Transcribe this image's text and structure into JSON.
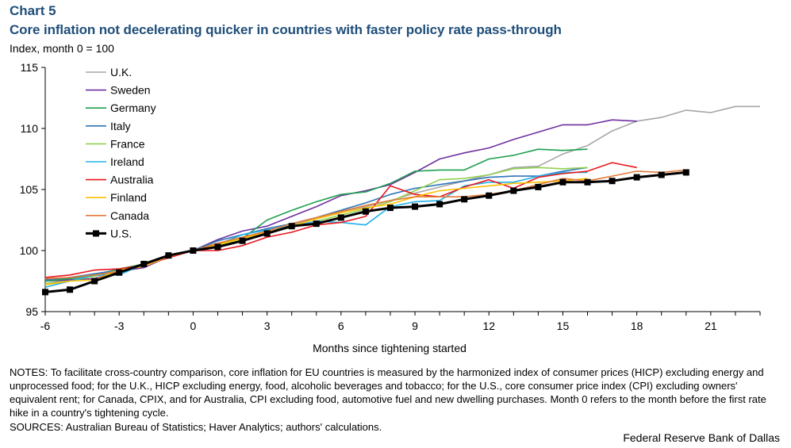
{
  "header": {
    "chart_number": "Chart 5",
    "title": "Core inflation not decelerating quicker in countries with faster policy rate pass-through",
    "unit_label": "Index,  month 0 = 100"
  },
  "footer": {
    "notes": "NOTES: To facilitate cross-country comparison, core inflation for EU countries is measured by the harmonized index of consumer prices (HICP) excluding energy and unprocessed food; for the U.K., HICP excluding energy, food, alcoholic beverages and tobacco; for the  U.S., core consumer price index (CPI) excluding owners' equivalent rent; for Canada, CPIX, and for Australia, CPI excluding food, automotive fuel and new dwelling purchases. Month  0 refers to the month before the first rate hike in a country's tightening cycle.",
    "sources": "SOURCES: Australian Bureau of Statistics; Haver Analytics;  authors' calculations.",
    "credit": "Federal Reserve Bank of Dallas"
  },
  "chart_data": {
    "type": "line",
    "xlabel": "Months since tightening started",
    "ylabel": "",
    "xlim": [
      -6,
      23
    ],
    "ylim": [
      95,
      115
    ],
    "xticks": [
      -6,
      -3,
      0,
      3,
      6,
      9,
      12,
      15,
      18,
      21
    ],
    "yticks": [
      95,
      100,
      105,
      110,
      115
    ],
    "grid": false,
    "legend_position": "top-left",
    "series": [
      {
        "name": "U.K.",
        "color": "#a6a6a6",
        "x0": -6,
        "values": [
          97.3,
          97.6,
          97.9,
          98.3,
          98.9,
          99.5,
          100.0,
          100.6,
          101.1,
          101.6,
          102.1,
          102.6,
          103.1,
          103.6,
          104.1,
          104.7,
          105.2,
          105.7,
          106.2,
          106.8,
          106.9,
          107.9,
          108.6,
          109.8,
          110.6,
          110.9,
          111.5,
          111.3,
          111.8,
          111.8
        ]
      },
      {
        "name": "Sweden",
        "color": "#7030a0",
        "x0": -6,
        "values": [
          97.5,
          97.6,
          97.7,
          98.3,
          98.6,
          99.5,
          100.0,
          100.9,
          101.6,
          102.0,
          102.8,
          103.6,
          104.5,
          104.9,
          105.4,
          106.4,
          107.5,
          108.0,
          108.4,
          109.1,
          109.7,
          110.3,
          110.3,
          110.7,
          110.6
        ]
      },
      {
        "name": "Germany",
        "color": "#1fa050",
        "x0": -6,
        "values": [
          97.5,
          97.7,
          98.0,
          98.5,
          98.9,
          99.6,
          100.0,
          100.6,
          101.0,
          102.5,
          103.3,
          104.0,
          104.6,
          104.8,
          105.5,
          106.5,
          106.6,
          106.6,
          107.5,
          107.8,
          108.3,
          108.2,
          108.3
        ]
      },
      {
        "name": "Italy",
        "color": "#2e75b6",
        "x0": -6,
        "values": [
          97.6,
          97.8,
          98.1,
          98.4,
          98.8,
          99.5,
          100.0,
          100.8,
          101.3,
          101.8,
          102.2,
          102.7,
          103.3,
          103.9,
          104.6,
          105.1,
          105.4,
          105.7,
          106.0,
          106.1,
          106.1,
          106.5,
          106.8
        ]
      },
      {
        "name": "France",
        "color": "#92d050",
        "x0": -6,
        "values": [
          97.3,
          97.5,
          97.9,
          98.4,
          98.9,
          99.5,
          100.0,
          100.4,
          100.9,
          101.4,
          101.9,
          102.4,
          102.9,
          103.4,
          104.0,
          104.9,
          105.8,
          105.9,
          106.2,
          106.7,
          106.8,
          106.7,
          106.8
        ]
      },
      {
        "name": "Ireland",
        "color": "#21b0e6",
        "x0": -6,
        "values": [
          97.0,
          97.5,
          98.0,
          98.0,
          98.9,
          99.6,
          100.0,
          100.5,
          101.3,
          101.7,
          102.0,
          102.4,
          102.3,
          102.1,
          103.6,
          104.0,
          104.1,
          105.3,
          105.6,
          105.6,
          106.1,
          106.4,
          106.4
        ]
      },
      {
        "name": "Australia",
        "color": "#e8161d",
        "x0": -6,
        "values": [
          97.8,
          98.0,
          98.4,
          98.5,
          98.8,
          99.4,
          100.0,
          100.0,
          100.4,
          101.1,
          101.5,
          102.1,
          102.3,
          102.8,
          105.3,
          104.6,
          104.4,
          105.2,
          105.8,
          105.1,
          106.0,
          106.3,
          106.5,
          107.2,
          106.8
        ]
      },
      {
        "name": "Finland",
        "color": "#ffc000",
        "x0": -6,
        "values": [
          97.2,
          97.5,
          97.6,
          98.4,
          98.7,
          99.5,
          100.0,
          100.5,
          101.0,
          101.5,
          102.0,
          102.6,
          103.1,
          103.5,
          103.8,
          104.4,
          104.9,
          105.1,
          105.3,
          105.5,
          105.6,
          105.7,
          105.9
        ]
      },
      {
        "name": "Canada",
        "color": "#e07b39",
        "x0": -6,
        "values": [
          97.7,
          97.8,
          98.0,
          98.3,
          98.8,
          99.5,
          100.0,
          100.6,
          101.1,
          101.6,
          102.2,
          102.7,
          103.2,
          103.7,
          104.1,
          104.4,
          104.4,
          104.4,
          104.6,
          104.9,
          105.4,
          105.9,
          105.7,
          106.1,
          106.5,
          106.4,
          106.6
        ]
      },
      {
        "name": "U.S.",
        "color": "#000000",
        "x0": -6,
        "marker": "square",
        "values": [
          96.6,
          96.8,
          97.5,
          98.2,
          98.9,
          99.6,
          100.0,
          100.3,
          100.8,
          101.4,
          102.0,
          102.2,
          102.7,
          103.2,
          103.5,
          103.6,
          103.8,
          104.2,
          104.5,
          104.9,
          105.2,
          105.6,
          105.6,
          105.7,
          106.0,
          106.2,
          106.4
        ]
      }
    ]
  }
}
